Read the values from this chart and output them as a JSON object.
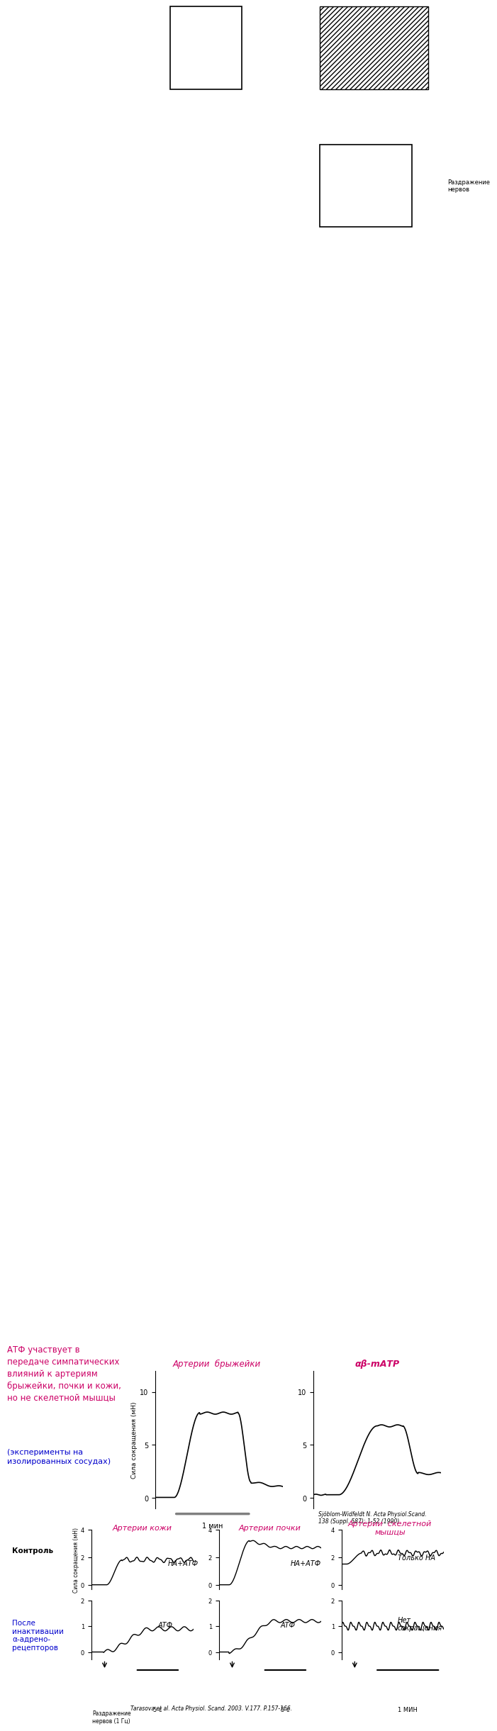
{
  "bg_color": "#ffffff",
  "title_text": "АТФ участвует в\nпередаче симпатических\nвлияний к артериям\nбрыжейки, почки и кожи,\nно не скелетной мышцы",
  "subtitle_text": "(эксперименты на\nизолированных сосудах)",
  "title_color": "#cc0066",
  "subtitle_color": "#0000cc",
  "top_left_label": "Артерии  брыжейки",
  "top_right_label": "αβ-mАТР",
  "top_label_color": "#cc0066",
  "ref1": "Sjöblom-Widfeldt N. Acta Physiol.Scand.\n138 (Suppl. 587): 1-52 (1990)",
  "ref2": "Tarasova et al. Acta Physiol. Scand. 2003. V.177. P.157-166.",
  "bottom_left_label": "Артерии кожи",
  "bottom_center_label": "Артерии почки",
  "bottom_right_label": "Артерии  скелетной\nмышцы",
  "control_label": "Контроль",
  "after_label": "После\nинактивации\nα-адрено-\nрецепторов",
  "scale_label1": "Раздражение\nнервов (1 Гц)",
  "scale_5s": "5 с",
  "scale_1min": "1 мин",
  "scale_1min2": "1 МИН",
  "ha_atf_label": "НА+АТФ",
  "atf_label": "АТФ",
  "only_ha": "Только НА",
  "no_contraction": "Нет\nсокращения",
  "razdr_nervov": "Раздражение\nнервов"
}
